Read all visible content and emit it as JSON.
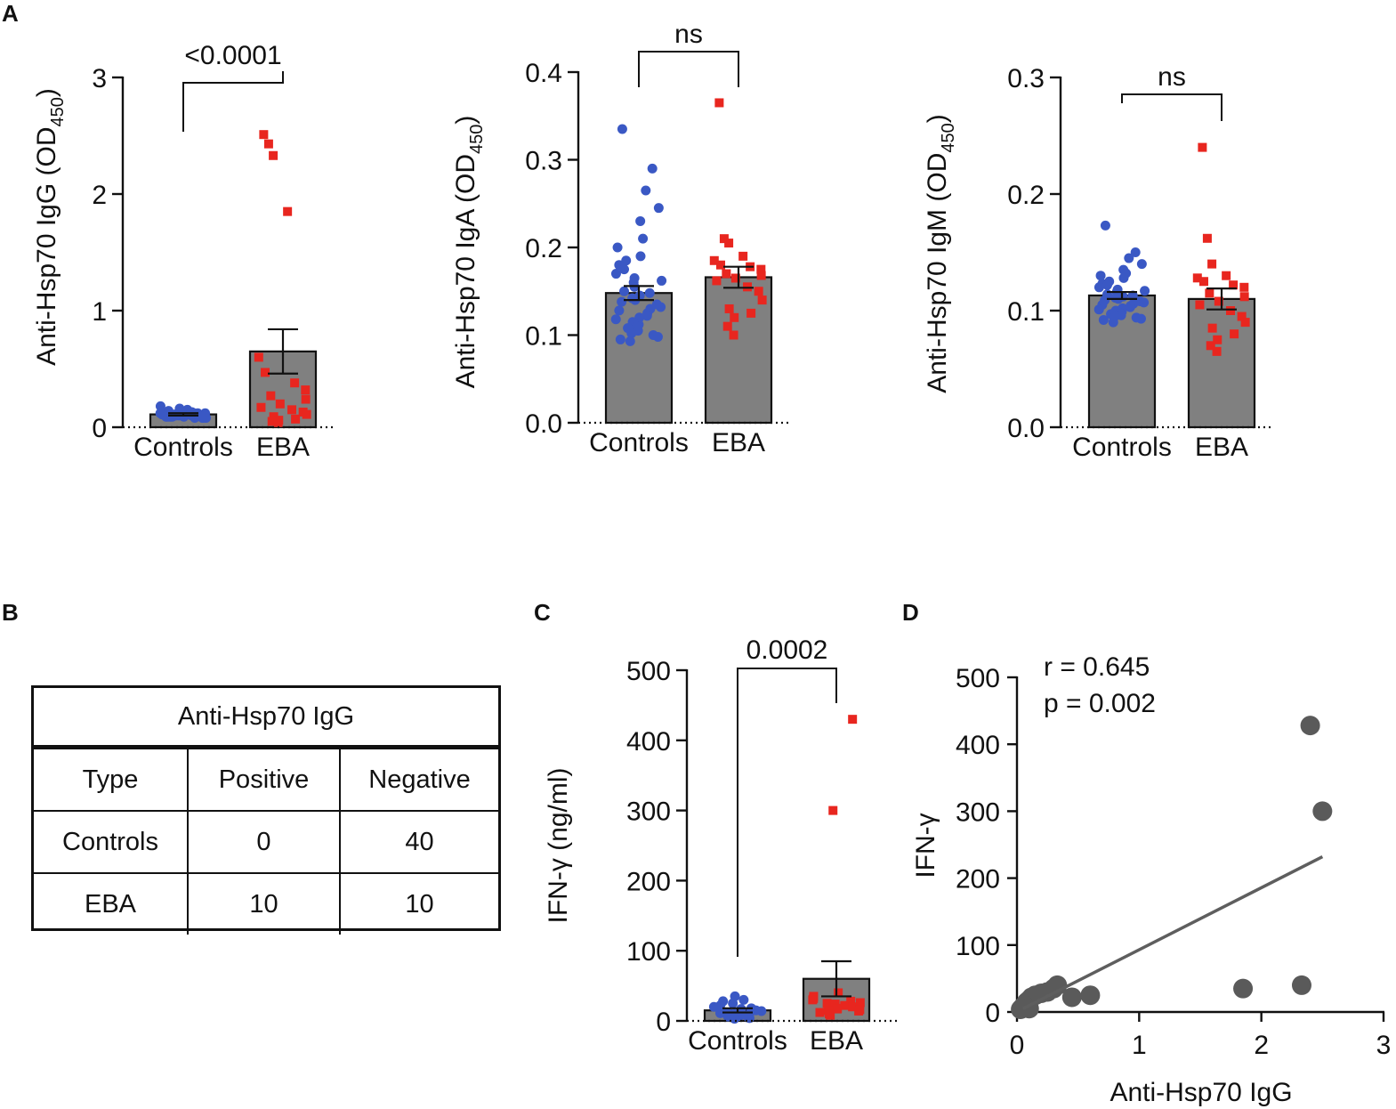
{
  "panel_labels": {
    "a": "A",
    "b": "B",
    "c": "C",
    "d": "D"
  },
  "colors": {
    "controls": "#3a58c4",
    "eba": "#e8261f",
    "bar": "#808080",
    "scatter": "#5a5a5a",
    "fit_line": "#5e5e5e"
  },
  "table": {
    "title": "Anti-Hsp70 IgG",
    "headers": [
      "Type",
      "Positive",
      "Negative"
    ],
    "rows": [
      [
        "Controls",
        "0",
        "40"
      ],
      [
        "EBA",
        "10",
        "10"
      ]
    ]
  },
  "chart_data": [
    {
      "id": "igg",
      "panel": "A",
      "type": "bar",
      "categories": [
        "Controls",
        "EBA"
      ],
      "ylabel": "Anti-Hsp70 IgG (OD",
      "ylabel_sub": "450",
      "ylabel_end": ")",
      "ylim": [
        0,
        3
      ],
      "yticks": [
        0,
        1,
        2,
        3
      ],
      "ytick_labels": [
        "0",
        "1",
        "2",
        "3"
      ],
      "bars": [
        {
          "mean": 0.11,
          "sem": 0.01
        },
        {
          "mean": 0.65,
          "sem": 0.19
        }
      ],
      "significance": "<0.0001",
      "points": [
        [
          0.09,
          0.1,
          0.12,
          0.08,
          0.13,
          0.15,
          0.11,
          0.1,
          0.09,
          0.12,
          0.14,
          0.18,
          0.1,
          0.08,
          0.11,
          0.13,
          0.09,
          0.12,
          0.1,
          0.11,
          0.16,
          0.09,
          0.1,
          0.12,
          0.08,
          0.11,
          0.13,
          0.1,
          0.09,
          0.12,
          0.11,
          0.1,
          0.14,
          0.09,
          0.11,
          0.1,
          0.12,
          0.08,
          0.1,
          0.11
        ],
        [
          2.51,
          2.43,
          2.33,
          1.85,
          0.6,
          0.47,
          0.38,
          0.32,
          0.27,
          0.24,
          0.2,
          0.17,
          0.15,
          0.13,
          0.11,
          0.09,
          0.07,
          0.06,
          0.05,
          0.04
        ]
      ]
    },
    {
      "id": "iga",
      "panel": "A",
      "type": "bar",
      "categories": [
        "Controls",
        "EBA"
      ],
      "ylabel": "Anti-Hsp70 IgA (OD",
      "ylabel_sub": "450",
      "ylabel_end": ")",
      "ylim": [
        0,
        0.4
      ],
      "yticks": [
        0,
        0.1,
        0.2,
        0.3,
        0.4
      ],
      "ytick_labels": [
        "0.0",
        "0.1",
        "0.2",
        "0.3",
        "0.4"
      ],
      "bars": [
        {
          "mean": 0.148,
          "sem": 0.008
        },
        {
          "mean": 0.166,
          "sem": 0.012
        }
      ],
      "significance": "ns",
      "points": [
        [
          0.335,
          0.29,
          0.265,
          0.245,
          0.23,
          0.21,
          0.2,
          0.19,
          0.185,
          0.18,
          0.175,
          0.17,
          0.165,
          0.162,
          0.16,
          0.155,
          0.15,
          0.148,
          0.145,
          0.142,
          0.14,
          0.138,
          0.135,
          0.132,
          0.13,
          0.128,
          0.125,
          0.122,
          0.12,
          0.118,
          0.115,
          0.112,
          0.11,
          0.108,
          0.105,
          0.102,
          0.1,
          0.098,
          0.095,
          0.093
        ],
        [
          0.365,
          0.21,
          0.205,
          0.19,
          0.185,
          0.18,
          0.178,
          0.175,
          0.17,
          0.168,
          0.165,
          0.162,
          0.155,
          0.15,
          0.14,
          0.13,
          0.125,
          0.12,
          0.11,
          0.1
        ]
      ]
    },
    {
      "id": "igm",
      "panel": "A",
      "type": "bar",
      "categories": [
        "Controls",
        "EBA"
      ],
      "ylabel": "Anti-Hsp70 IgM (OD",
      "ylabel_sub": "450",
      "ylabel_end": ")",
      "ylim": [
        0,
        0.3
      ],
      "yticks": [
        0,
        0.1,
        0.2,
        0.3
      ],
      "ytick_labels": [
        "0.0",
        "0.1",
        "0.2",
        "0.3"
      ],
      "bars": [
        {
          "mean": 0.113,
          "sem": 0.003
        },
        {
          "mean": 0.11,
          "sem": 0.009
        }
      ],
      "significance": "ns",
      "points": [
        [
          0.173,
          0.15,
          0.145,
          0.14,
          0.135,
          0.132,
          0.13,
          0.128,
          0.125,
          0.123,
          0.122,
          0.12,
          0.118,
          0.117,
          0.116,
          0.115,
          0.114,
          0.113,
          0.112,
          0.111,
          0.11,
          0.109,
          0.108,
          0.107,
          0.106,
          0.105,
          0.104,
          0.103,
          0.102,
          0.101,
          0.1,
          0.099,
          0.098,
          0.097,
          0.096,
          0.095,
          0.094,
          0.093,
          0.092,
          0.09
        ],
        [
          0.24,
          0.162,
          0.14,
          0.13,
          0.128,
          0.125,
          0.122,
          0.12,
          0.115,
          0.112,
          0.108,
          0.105,
          0.1,
          0.095,
          0.09,
          0.085,
          0.08,
          0.075,
          0.07,
          0.065
        ]
      ]
    },
    {
      "id": "ifng",
      "panel": "C",
      "type": "bar",
      "categories": [
        "Controls",
        "EBA"
      ],
      "ylabel": "IFN-γ (ng/ml)",
      "ylabel_sub": "",
      "ylabel_end": "",
      "ylim": [
        0,
        500
      ],
      "yticks": [
        0,
        100,
        200,
        300,
        400,
        500
      ],
      "ytick_labels": [
        "0",
        "100",
        "200",
        "300",
        "400",
        "500"
      ],
      "bars": [
        {
          "mean": 15,
          "sem": 3
        },
        {
          "mean": 60,
          "sem": 25
        }
      ],
      "significance": "0.0002",
      "points": [
        [
          35,
          30,
          28,
          25,
          22,
          20,
          18,
          17,
          15,
          14,
          12,
          11,
          10,
          9,
          8,
          7,
          6,
          5,
          4,
          3
        ],
        [
          430,
          300,
          40,
          35,
          32,
          30,
          28,
          26,
          25,
          24,
          22,
          20,
          18,
          17,
          16,
          15,
          14,
          12,
          10,
          8
        ]
      ]
    },
    {
      "id": "corr",
      "panel": "D",
      "type": "scatter",
      "xlabel": "Anti-Hsp70 IgG",
      "ylabel": "IFN-γ",
      "xlim": [
        0,
        3
      ],
      "ylim": [
        0,
        500
      ],
      "xticks": [
        0,
        1,
        2,
        3
      ],
      "yticks": [
        0,
        100,
        200,
        300,
        400,
        500
      ],
      "xtick_labels": [
        "0",
        "1",
        "2",
        "3"
      ],
      "ytick_labels": [
        "0",
        "100",
        "200",
        "300",
        "400",
        "500"
      ],
      "annotations": [
        "r = 0.645",
        "p = 0.002"
      ],
      "fit": {
        "x": [
          0.05,
          2.5
        ],
        "y": [
          5,
          232
        ]
      },
      "points": [
        [
          2.4,
          428
        ],
        [
          2.5,
          300
        ],
        [
          1.85,
          35
        ],
        [
          2.33,
          40
        ],
        [
          0.6,
          25
        ],
        [
          0.45,
          22
        ],
        [
          0.33,
          40
        ],
        [
          0.3,
          35
        ],
        [
          0.25,
          30
        ],
        [
          0.2,
          28
        ],
        [
          0.15,
          25
        ],
        [
          0.12,
          22
        ],
        [
          0.1,
          18
        ],
        [
          0.08,
          15
        ],
        [
          0.07,
          12
        ],
        [
          0.06,
          10
        ],
        [
          0.05,
          8
        ],
        [
          0.04,
          6
        ],
        [
          0.03,
          4
        ],
        [
          0.1,
          5
        ]
      ]
    }
  ]
}
